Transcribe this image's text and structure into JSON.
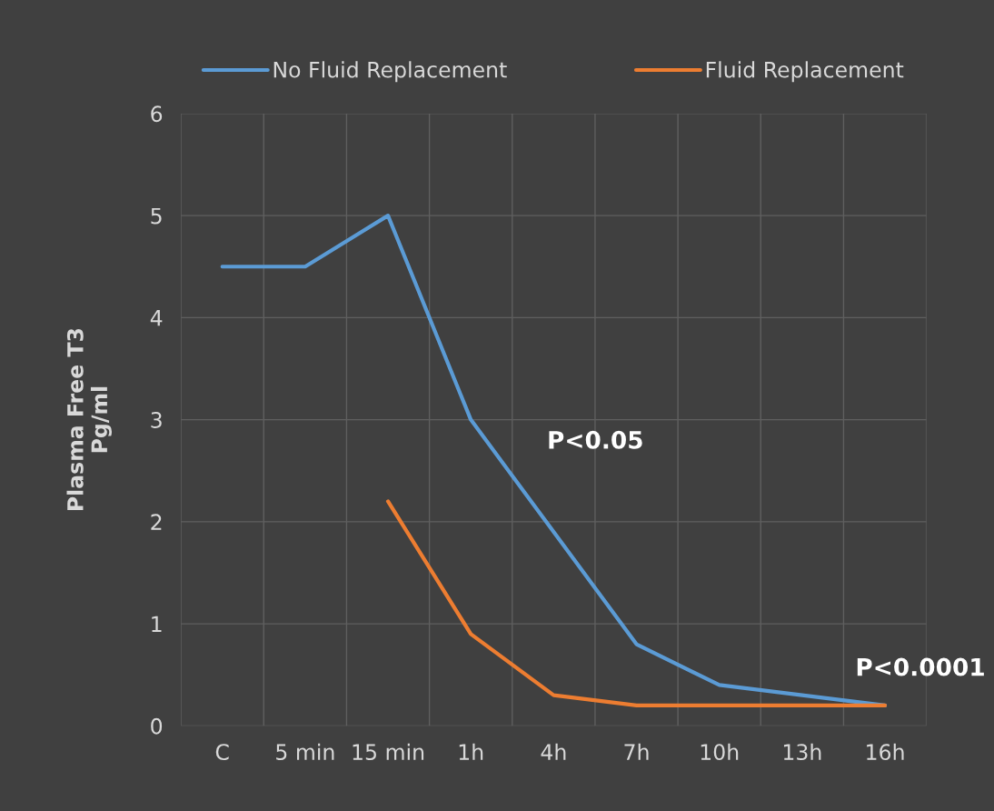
{
  "chart_data": {
    "type": "line",
    "ylabel": "Plasma Free T3\nPg/ml",
    "categories": [
      "C",
      "5 min",
      "15 min",
      "1h",
      "4h",
      "7h",
      "10h",
      "13h",
      "16h"
    ],
    "series": [
      {
        "name": "No Fluid Replacement",
        "color": "#5b9bd5",
        "values": [
          4.5,
          4.5,
          5.0,
          3.0,
          1.9,
          0.8,
          0.4,
          0.3,
          0.2
        ]
      },
      {
        "name": "Fluid Replacement",
        "color": "#ed7d31",
        "values": [
          null,
          null,
          2.2,
          0.9,
          0.3,
          0.2,
          0.2,
          0.2,
          0.2
        ]
      }
    ],
    "ylim": [
      0,
      6
    ],
    "yticks": [
      0,
      1,
      2,
      3,
      4,
      5,
      6
    ],
    "grid": true,
    "legend": "top",
    "marker": "none",
    "line_style": "solid",
    "annotations": [
      "P<0.05",
      "P<0.0001"
    ]
  }
}
